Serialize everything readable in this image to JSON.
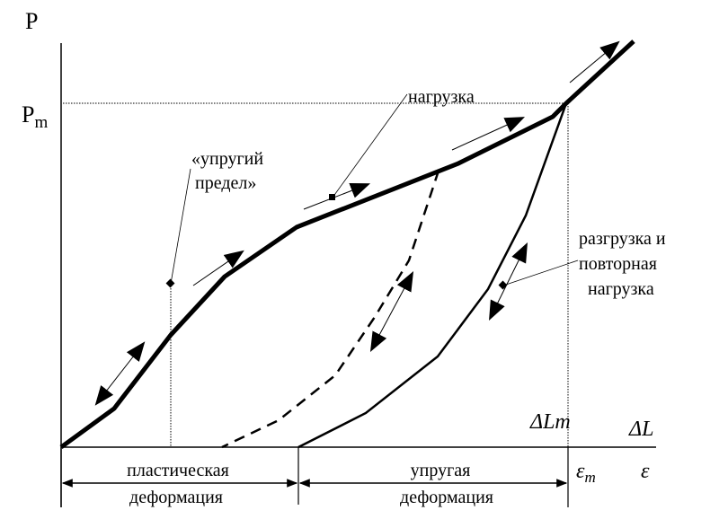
{
  "axes": {
    "y_label": "P",
    "y_mark_main": "P",
    "y_mark_sub": "m",
    "x_label_top": "ΔL",
    "x_mark_top": "ΔLm",
    "x_label_bottom": "ε",
    "x_mark_bottom_main": "ε",
    "x_mark_bottom_sub": "m"
  },
  "annotations": {
    "elastic_limit_line1": "«упругий",
    "elastic_limit_line2": "предел»",
    "loading": "нагрузка",
    "unloading_line1": "разгрузка и",
    "unloading_line2": "повторная",
    "unloading_line3": "нагрузка"
  },
  "ranges": {
    "plastic_line1": "пластическая",
    "plastic_line2": "деформация",
    "elastic_line1": "упругая",
    "elastic_line2": "деформация"
  }
}
